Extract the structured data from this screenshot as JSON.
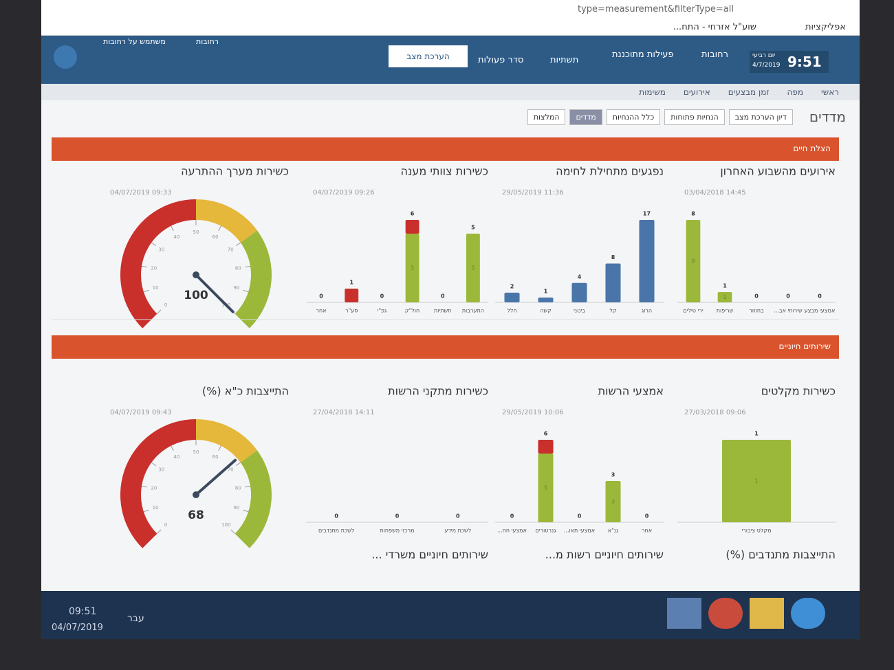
{
  "browser": {
    "url": "type=measurement&filterType=all",
    "bookmarks": [
      "אפליקציות",
      "שוע\"ל אזרחי - התח..."
    ]
  },
  "header": {
    "user": "משתמש על רחובות",
    "city_top": "רחובות",
    "time": "9:51",
    "weekday": "יום רביעי",
    "date": "4/7/2019",
    "city": "רחובות",
    "planned": "פעילות מתוכננת",
    "nav": [
      "ראשי",
      "מפה",
      "זמן מבצעים",
      "אירועים",
      "משימות",
      "תשתיות",
      "סדר פעולות",
      "הערכת מצב"
    ]
  },
  "page": {
    "title": "מדדים",
    "tabs": [
      "דיון הערכת מצב",
      "הנחיות פתוחות",
      "כלל ההנחיות",
      "מדדים",
      "המלצות"
    ]
  },
  "sections": [
    "הצלת חיים",
    "שירותים חיוניים"
  ],
  "chart_data": [
    {
      "type": "bar",
      "title": "אירועים מהשבוע האחרון",
      "updated": "03/04/2018 14:45",
      "inner_labels": true,
      "categories": [
        "אמצעי מבצע",
        "שירותי אב...",
        "בחוזור",
        "שריפות",
        "ירי טילים"
      ],
      "series": [
        {
          "color": "#9bb83a",
          "values": [
            0,
            0,
            0,
            1,
            8
          ]
        }
      ]
    },
    {
      "type": "bar",
      "title": "נפגעים מתחילת לחימה",
      "updated": "29/05/2019 11:36",
      "inner_labels": false,
      "categories": [
        "הרוג",
        "קל",
        "בינוני",
        "קשה",
        "חלל"
      ],
      "series": [
        {
          "color": "#4a75a8",
          "values": [
            17,
            8,
            4,
            1,
            2
          ]
        }
      ]
    },
    {
      "type": "bar",
      "title": "כשירות צוותי מענה",
      "updated": "04/07/2019 09:26",
      "inner_labels": true,
      "categories": [
        "התערבות",
        "תשתיות",
        "חול\"ק",
        "גפ\"י",
        "סע\"ר",
        "אחר"
      ],
      "series": [
        {
          "color": "#9bb83a",
          "values": [
            5,
            0,
            5,
            0,
            0,
            0
          ]
        },
        {
          "color": "#c9302c",
          "values": [
            0,
            0,
            1,
            0,
            1,
            0
          ]
        }
      ],
      "totals": [
        5,
        0,
        6,
        0,
        1,
        0
      ]
    },
    {
      "type": "gauge",
      "title": "כשירות מערך ההתרעה",
      "updated": "04/07/2019 09:33",
      "value": 100,
      "ylim": [
        0,
        100
      ],
      "yticks": [
        0,
        10,
        20,
        30,
        40,
        50,
        60,
        70,
        80,
        90,
        100
      ],
      "bands": [
        {
          "from": 0,
          "to": 50,
          "color": "#c9302c"
        },
        {
          "from": 50,
          "to": 70,
          "color": "#e5b73b"
        },
        {
          "from": 70,
          "to": 100,
          "color": "#9bb83a"
        }
      ]
    },
    {
      "type": "bar",
      "title": "כשירות מקלטים",
      "updated": "27/03/2018 09:06",
      "inner_labels": true,
      "categories": [
        "מקלט ציבורי"
      ],
      "series": [
        {
          "color": "#9bb83a",
          "values": [
            1
          ]
        }
      ]
    },
    {
      "type": "bar",
      "title": "אמצעי הרשות",
      "updated": "29/05/2019 10:06",
      "inner_labels": true,
      "categories": [
        "אחר",
        "גנ\"א",
        "אמצעי תאו...",
        "גנרטורים",
        "אמצעי חח..."
      ],
      "series": [
        {
          "color": "#9bb83a",
          "values": [
            0,
            3,
            0,
            5,
            0
          ]
        },
        {
          "color": "#c9302c",
          "values": [
            0,
            0,
            0,
            1,
            0
          ]
        }
      ],
      "totals": [
        0,
        3,
        0,
        6,
        0
      ]
    },
    {
      "type": "bar",
      "title": "כשירות מתקני הרשות",
      "updated": "27/04/2018 14:11",
      "inner_labels": false,
      "categories": [
        "לשכת מידע",
        "מרכזי משפחות",
        "לשכת מתנדבים"
      ],
      "series": [
        {
          "color": "#9bb83a",
          "values": [
            0,
            0,
            0
          ]
        }
      ]
    },
    {
      "type": "gauge",
      "title": "התייצבות כ\"א (%)",
      "updated": "04/07/2019 09:43",
      "value": 68,
      "ylim": [
        0,
        100
      ],
      "yticks": [
        0,
        10,
        20,
        30,
        40,
        50,
        60,
        70,
        80,
        90,
        100
      ],
      "bands": [
        {
          "from": 0,
          "to": 50,
          "color": "#c9302c"
        },
        {
          "from": 50,
          "to": 70,
          "color": "#e5b73b"
        },
        {
          "from": 70,
          "to": 100,
          "color": "#9bb83a"
        }
      ]
    }
  ],
  "more_widgets": [
    "התייצבות מתנדבים (%)",
    "שירותים חיוניים רשות מ...",
    "שירותים חיוניים משרדי ..."
  ],
  "taskbar": {
    "time": "09:51",
    "date": "04/07/2019",
    "language": "עבר"
  }
}
